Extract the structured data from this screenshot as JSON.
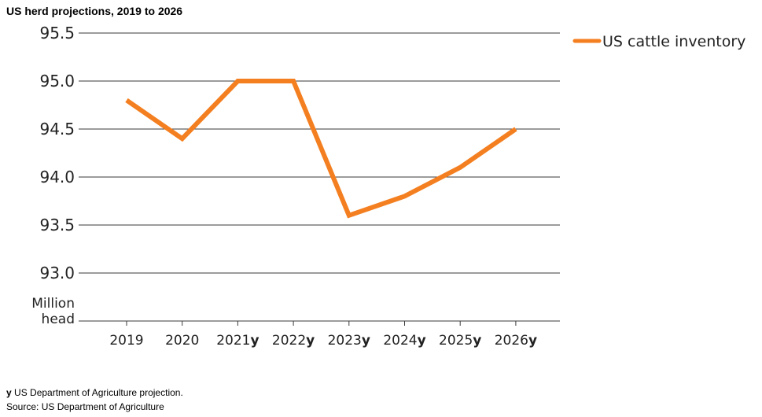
{
  "chart_data": {
    "type": "line",
    "title": "US herd projections, 2019 to 2026",
    "categories": [
      "2019",
      "2020",
      "2021",
      "2022",
      "2023",
      "2024",
      "2025",
      "2026"
    ],
    "category_suffix": [
      "",
      "",
      "y",
      "y",
      "y",
      "y",
      "y",
      "y"
    ],
    "series": [
      {
        "name": "US cattle inventory",
        "values": [
          94.8,
          94.4,
          95.0,
          95.0,
          93.6,
          93.8,
          94.1,
          94.5
        ],
        "color": "#f47f20"
      }
    ],
    "yticks": [
      "95.5",
      "95.0",
      "94.5",
      "94.0",
      "93.5",
      "93.0"
    ],
    "ylim": [
      92.5,
      95.5
    ],
    "unit_label": [
      "Million",
      "head"
    ],
    "grid": true,
    "legend_position": "top-right"
  },
  "footnotes": {
    "marker": "y",
    "note": " US Department of Agriculture projection.",
    "source": "Source: US Department of Agriculture"
  }
}
